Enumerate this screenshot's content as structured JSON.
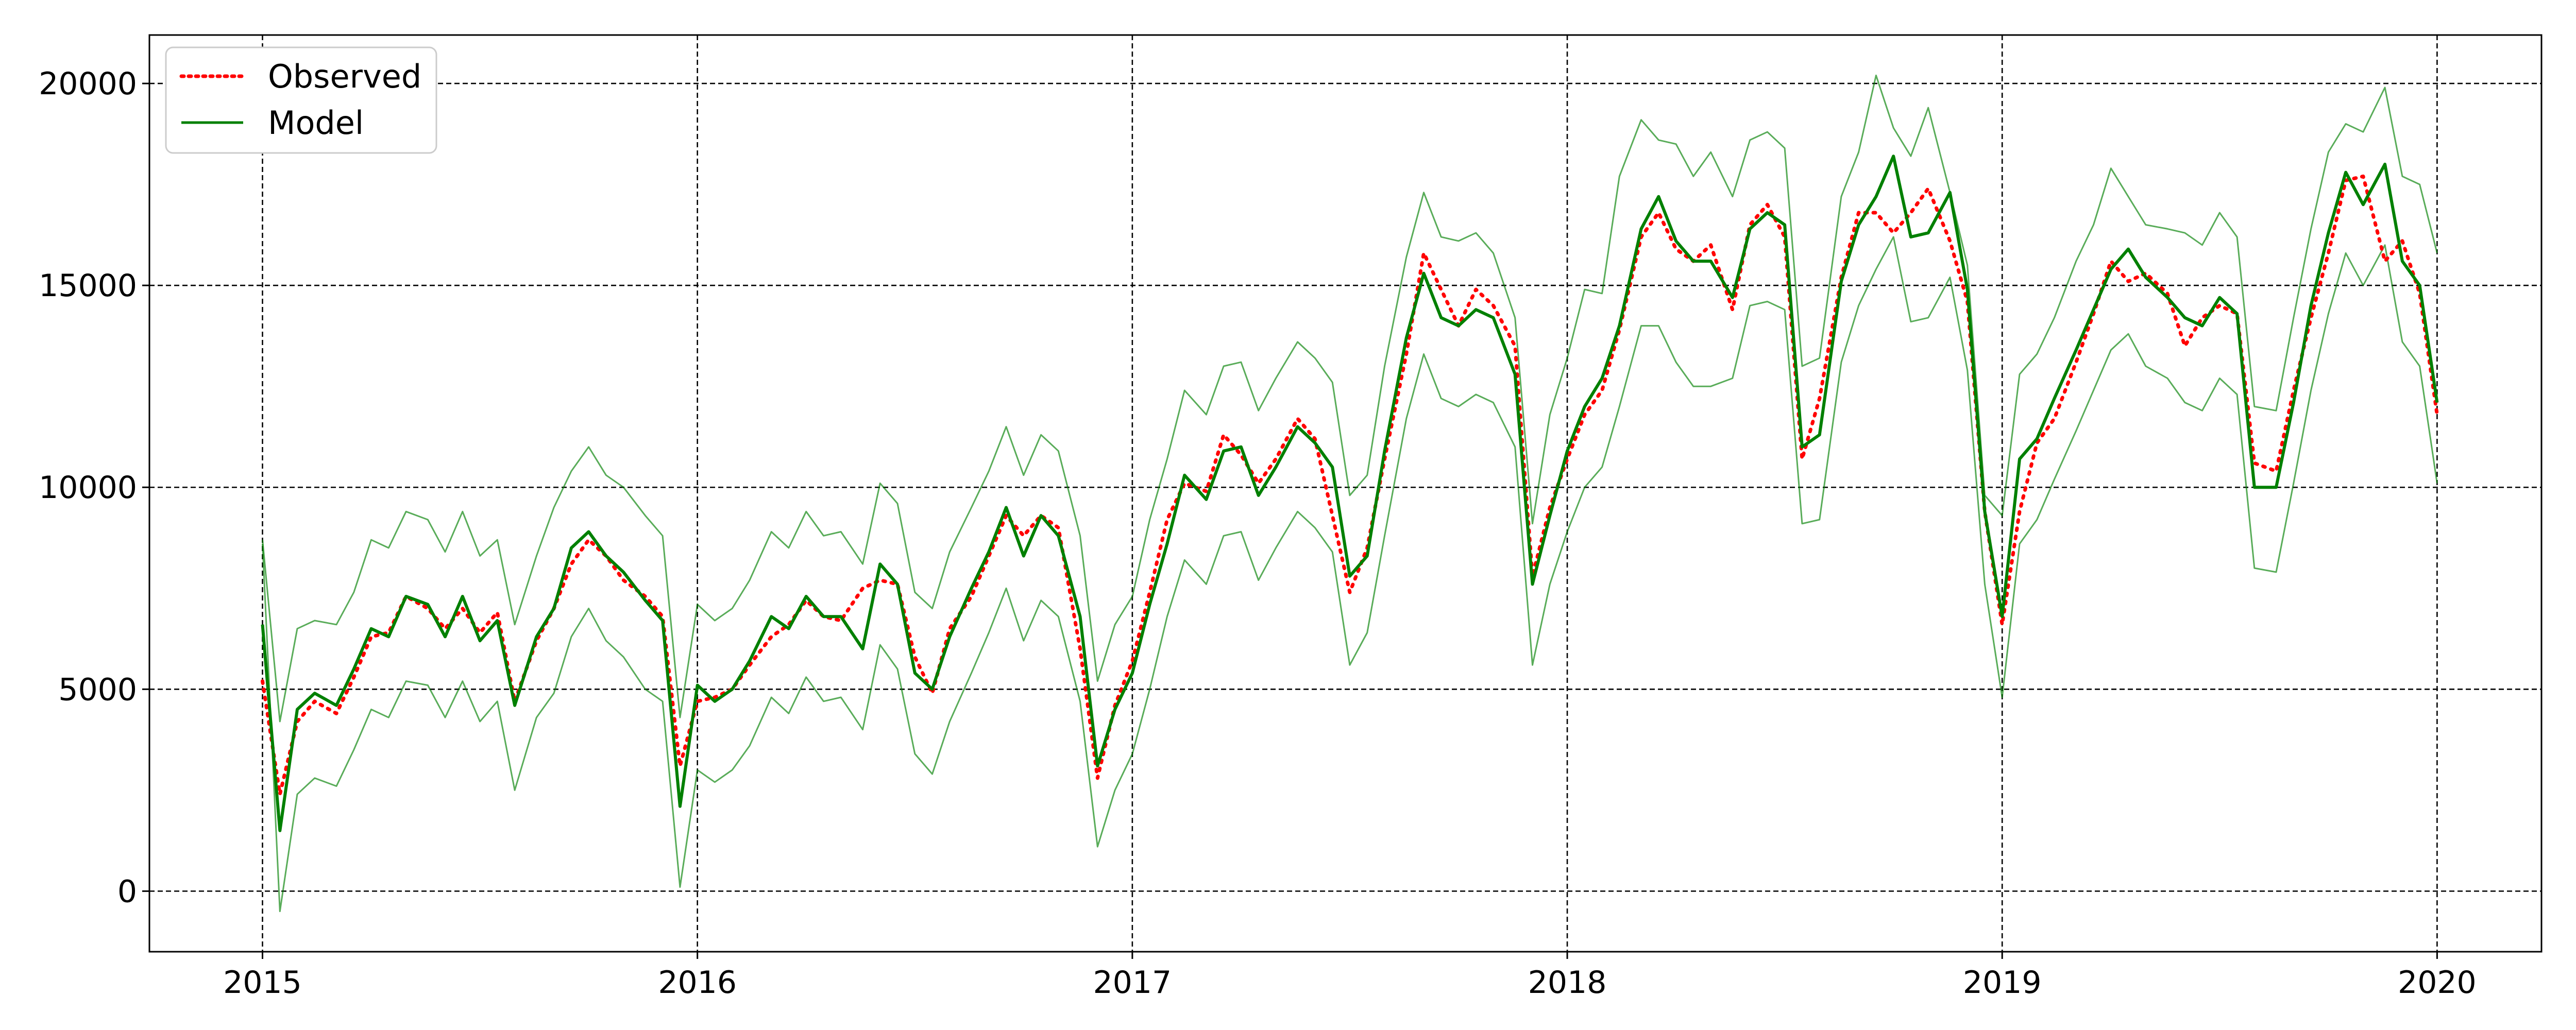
{
  "chart_data": {
    "type": "line",
    "title": "",
    "xlabel": "",
    "ylabel": "",
    "xlim": [
      2014.74,
      2020.24
    ],
    "ylim": [
      -1500,
      21200
    ],
    "xticks": [
      2015,
      2016,
      2017,
      2018,
      2019,
      2020
    ],
    "xtick_labels": [
      "2015",
      "2016",
      "2017",
      "2018",
      "2019",
      "2020"
    ],
    "yticks": [
      0,
      5000,
      10000,
      15000,
      20000
    ],
    "ytick_labels": [
      "0",
      "5000",
      "10000",
      "15000",
      "20000"
    ],
    "grid": true,
    "legend": {
      "position": "upper-left",
      "entries": [
        {
          "label": "Observed",
          "color": "#ff0000",
          "style": "dotted"
        },
        {
          "label": "Model",
          "color": "#008000",
          "style": "solid"
        }
      ]
    },
    "x": [
      2015.0,
      2015.04,
      2015.08,
      2015.12,
      2015.17,
      2015.21,
      2015.25,
      2015.29,
      2015.33,
      2015.38,
      2015.42,
      2015.46,
      2015.5,
      2015.54,
      2015.58,
      2015.63,
      2015.67,
      2015.71,
      2015.75,
      2015.79,
      2015.83,
      2015.88,
      2015.92,
      2015.96,
      2016.0,
      2016.04,
      2016.08,
      2016.12,
      2016.17,
      2016.21,
      2016.25,
      2016.29,
      2016.33,
      2016.38,
      2016.42,
      2016.46,
      2016.5,
      2016.54,
      2016.58,
      2016.63,
      2016.67,
      2016.71,
      2016.75,
      2016.79,
      2016.83,
      2016.88,
      2016.92,
      2016.96,
      2017.0,
      2017.04,
      2017.08,
      2017.12,
      2017.17,
      2017.21,
      2017.25,
      2017.29,
      2017.33,
      2017.38,
      2017.42,
      2017.46,
      2017.5,
      2017.54,
      2017.58,
      2017.63,
      2017.67,
      2017.71,
      2017.75,
      2017.79,
      2017.83,
      2017.88,
      2017.92,
      2017.96,
      2018.0,
      2018.04,
      2018.08,
      2018.12,
      2018.17,
      2018.21,
      2018.25,
      2018.29,
      2018.33,
      2018.38,
      2018.42,
      2018.46,
      2018.5,
      2018.54,
      2018.58,
      2018.63,
      2018.67,
      2018.71,
      2018.75,
      2018.79,
      2018.83,
      2018.88,
      2018.92,
      2018.96,
      2019.0,
      2019.04,
      2019.08,
      2019.12,
      2019.17,
      2019.21,
      2019.25,
      2019.29,
      2019.33,
      2019.38,
      2019.42,
      2019.46,
      2019.5,
      2019.54,
      2019.58,
      2019.63,
      2019.67,
      2019.71,
      2019.75,
      2019.79,
      2019.83,
      2019.88,
      2019.92,
      2019.96,
      2020.0
    ],
    "series": [
      {
        "name": "Observed",
        "color": "#ff0000",
        "style": "dotted",
        "values": [
          5200,
          2400,
          4200,
          4700,
          4400,
          5300,
          6300,
          6400,
          7300,
          7000,
          6500,
          7000,
          6400,
          6900,
          4700,
          6200,
          7000,
          8100,
          8700,
          8300,
          7700,
          7300,
          6800,
          3100,
          4700,
          4800,
          5000,
          5600,
          6300,
          6600,
          7200,
          6800,
          6700,
          7500,
          7700,
          7600,
          5800,
          4900,
          6500,
          7300,
          8300,
          9300,
          8800,
          9300,
          9000,
          6000,
          2800,
          4600,
          5700,
          7400,
          9200,
          10100,
          9900,
          11300,
          10800,
          10100,
          10700,
          11700,
          11200,
          9300,
          7400,
          8500,
          10700,
          13300,
          15800,
          14900,
          14000,
          14900,
          14500,
          13500,
          7800,
          9500,
          10700,
          11800,
          12400,
          13900,
          16200,
          16800,
          15900,
          15600,
          16000,
          14400,
          16500,
          17000,
          16200,
          10700,
          12200,
          15200,
          16800,
          16800,
          16300,
          16800,
          17400,
          16100,
          14600,
          9400,
          6600,
          9400,
          11100,
          11700,
          13100,
          14300,
          15600,
          15100,
          15300,
          14800,
          13500,
          14200,
          14500,
          14300,
          10600,
          10400,
          12400,
          14200,
          15800,
          17600,
          17700,
          15600,
          16100,
          14800,
          11800
        ]
      },
      {
        "name": "Model",
        "color": "#008000",
        "style": "solid",
        "values": [
          6600,
          1500,
          4500,
          4900,
          4600,
          5500,
          6500,
          6300,
          7300,
          7100,
          6300,
          7300,
          6200,
          6700,
          4600,
          6300,
          7000,
          8500,
          8900,
          8300,
          7900,
          7200,
          6700,
          2100,
          5100,
          4700,
          5000,
          5700,
          6800,
          6500,
          7300,
          6800,
          6800,
          6000,
          8100,
          7600,
          5400,
          5000,
          6300,
          7500,
          8400,
          9500,
          8300,
          9300,
          8800,
          6800,
          3100,
          4500,
          5400,
          7100,
          8600,
          10300,
          9700,
          10900,
          11000,
          9800,
          10500,
          11500,
          11100,
          10500,
          7800,
          8300,
          10900,
          13700,
          15300,
          14200,
          14000,
          14400,
          14200,
          12800,
          7600,
          9300,
          10900,
          12000,
          12700,
          14000,
          16400,
          17200,
          16100,
          15600,
          15600,
          14700,
          16400,
          16800,
          16500,
          11000,
          11300,
          15100,
          16500,
          17200,
          18200,
          16200,
          16300,
          17300,
          14900,
          9400,
          6800,
          10700,
          11200,
          12200,
          13400,
          14400,
          15400,
          15900,
          15200,
          14700,
          14200,
          14000,
          14700,
          14300,
          10000,
          10000,
          12100,
          14500,
          16300,
          17800,
          17000,
          18000,
          15600,
          15000,
          12100
        ]
      },
      {
        "name": "",
        "color": "#008000",
        "style": "band-upper",
        "values": [
          8700,
          4200,
          6500,
          6700,
          6600,
          7400,
          8700,
          8500,
          9400,
          9200,
          8400,
          9400,
          8300,
          8700,
          6600,
          8300,
          9500,
          10400,
          11000,
          10300,
          10000,
          9300,
          8800,
          4300,
          7100,
          6700,
          7000,
          7700,
          8900,
          8500,
          9400,
          8800,
          8900,
          8100,
          10100,
          9600,
          7400,
          7000,
          8400,
          9500,
          10400,
          11500,
          10300,
          11300,
          10900,
          8800,
          5200,
          6600,
          7300,
          9200,
          10700,
          12400,
          11800,
          13000,
          13100,
          11900,
          12700,
          13600,
          13200,
          12600,
          9800,
          10300,
          13000,
          15700,
          17300,
          16200,
          16100,
          16300,
          15800,
          14200,
          9100,
          11800,
          13200,
          14900,
          14800,
          17700,
          19100,
          18600,
          18500,
          17700,
          18300,
          17200,
          18600,
          18800,
          18400,
          13000,
          13200,
          17200,
          18300,
          20200,
          18900,
          18200,
          19400,
          17300,
          15500,
          9800,
          9300,
          12800,
          13300,
          14200,
          15600,
          16500,
          17900,
          17200,
          16500,
          16400,
          16300,
          16000,
          16800,
          16200,
          12000,
          11900,
          14200,
          16400,
          18300,
          19000,
          18800,
          19900,
          17700,
          17500,
          15800
        ]
      },
      {
        "name": "",
        "color": "#008000",
        "style": "band-lower",
        "values": [
          8600,
          -500,
          2400,
          2800,
          2600,
          3500,
          4500,
          4300,
          5200,
          5100,
          4300,
          5200,
          4200,
          4700,
          2500,
          4300,
          4900,
          6300,
          7000,
          6200,
          5800,
          5000,
          4700,
          100,
          3000,
          2700,
          3000,
          3600,
          4800,
          4400,
          5300,
          4700,
          4800,
          4000,
          6100,
          5500,
          3400,
          2900,
          4200,
          5400,
          6400,
          7500,
          6200,
          7200,
          6800,
          4700,
          1100,
          2500,
          3400,
          5000,
          6800,
          8200,
          7600,
          8800,
          8900,
          7700,
          8500,
          9400,
          9000,
          8400,
          5600,
          6400,
          8800,
          11700,
          13300,
          12200,
          12000,
          12300,
          12100,
          11000,
          5600,
          7600,
          8900,
          10000,
          10500,
          12000,
          14000,
          14000,
          13100,
          12500,
          12500,
          12700,
          14500,
          14600,
          14400,
          9100,
          9200,
          13100,
          14500,
          15400,
          16200,
          14100,
          14200,
          15200,
          12900,
          7600,
          4800,
          8600,
          9200,
          10200,
          11400,
          12400,
          13400,
          13800,
          13000,
          12700,
          12100,
          11900,
          12700,
          12300,
          8000,
          7900,
          10100,
          12400,
          14300,
          15800,
          15000,
          16000,
          13600,
          13000,
          10100
        ]
      }
    ]
  }
}
